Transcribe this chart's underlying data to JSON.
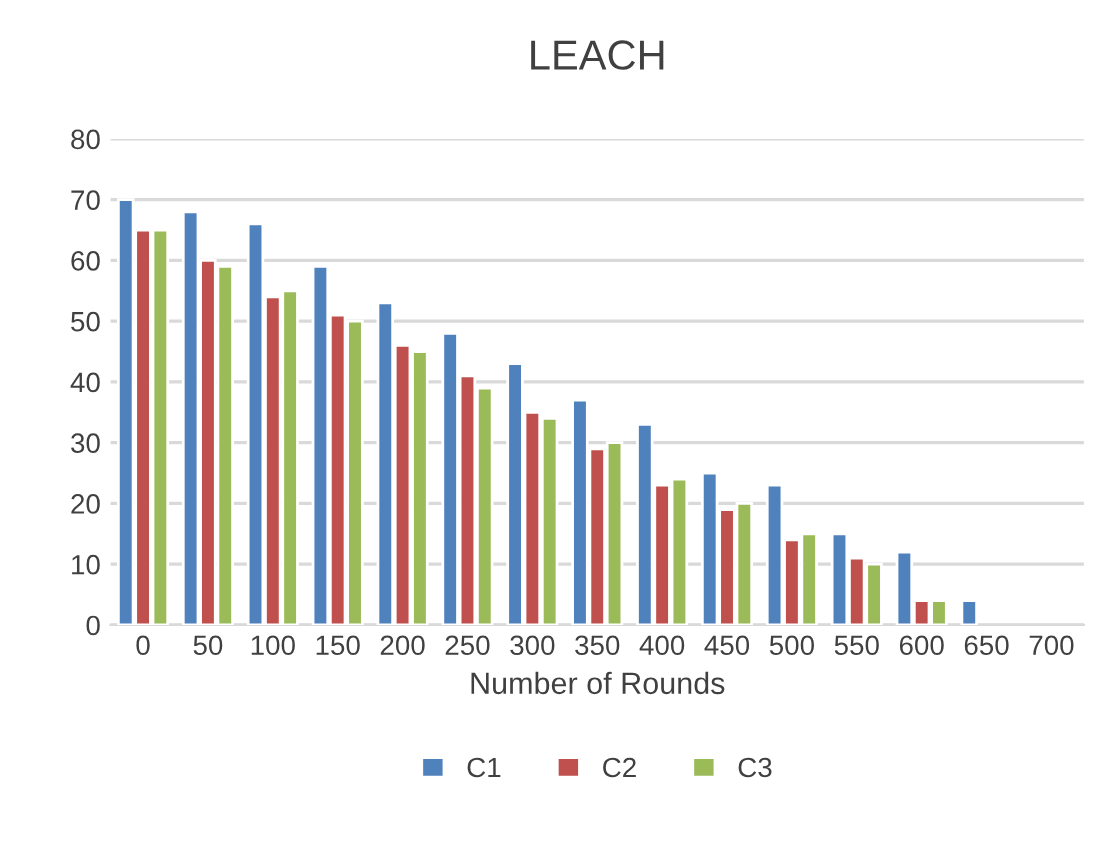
{
  "chart_data": {
    "type": "bar",
    "title": "LEACH",
    "xlabel": "Number of Rounds",
    "categories": [
      "0",
      "50",
      "100",
      "150",
      "200",
      "250",
      "300",
      "350",
      "400",
      "450",
      "500",
      "550",
      "600",
      "650",
      "700"
    ],
    "series": [
      {
        "name": "C1",
        "color": "#4f81bd",
        "values": [
          70,
          68,
          66,
          59,
          53,
          48,
          43,
          37,
          33,
          25,
          23,
          15,
          12,
          4,
          null
        ]
      },
      {
        "name": "C2",
        "color": "#c0504d",
        "values": [
          65,
          60,
          54,
          51,
          46,
          41,
          35,
          29,
          23,
          19,
          14,
          11,
          4,
          null,
          null
        ]
      },
      {
        "name": "C3",
        "color": "#9bbb59",
        "values": [
          65,
          59,
          55,
          50,
          45,
          39,
          34,
          30,
          24,
          20,
          15,
          10,
          4,
          null,
          null
        ]
      }
    ],
    "ylim": [
      0,
      80
    ],
    "yticks": [
      0,
      10,
      20,
      30,
      40,
      50,
      60,
      70,
      80
    ],
    "grid": "y",
    "legend": "bottom"
  }
}
